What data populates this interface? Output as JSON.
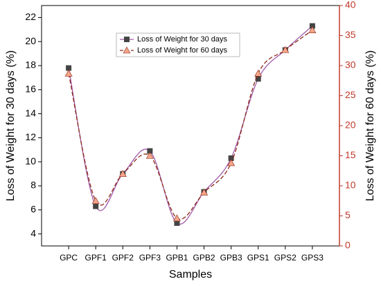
{
  "chart_data": {
    "type": "line",
    "x_label": "Samples",
    "y_label": "Loss of Weight for 30 days (%)",
    "y2_label": "Loss of Weight for 60 days (%)",
    "categories": [
      "GPC",
      "GPF1",
      "GPF2",
      "GPF3",
      "GPB1",
      "GPB2",
      "GPB3",
      "GPS1",
      "GPS2",
      "GPS3"
    ],
    "series": [
      {
        "name": "Loss of Weight for 30 days",
        "color": "#444444",
        "line_color": "#a05aa8",
        "marker": "square",
        "values": [
          17.8,
          6.3,
          9.0,
          10.9,
          4.9,
          7.5,
          10.3,
          16.9,
          19.3,
          21.3
        ]
      },
      {
        "name": "Loss of Weight for 60 days",
        "color": "#f4a58a",
        "line_color": "#8b2a1a",
        "marker": "triangle",
        "axis": "y2",
        "values": [
          28.7,
          7.5,
          12.0,
          15.0,
          4.6,
          8.9,
          13.8,
          28.7,
          32.6,
          35.9
        ]
      }
    ],
    "ylim": [
      3,
      23
    ],
    "yticks": [
      4,
      6,
      8,
      10,
      12,
      14,
      16,
      18,
      20,
      22
    ],
    "y2lim": [
      0,
      40
    ],
    "y2ticks": [
      0,
      5,
      10,
      15,
      20,
      25,
      30,
      35,
      40
    ],
    "y2_color": "#c0392b"
  }
}
